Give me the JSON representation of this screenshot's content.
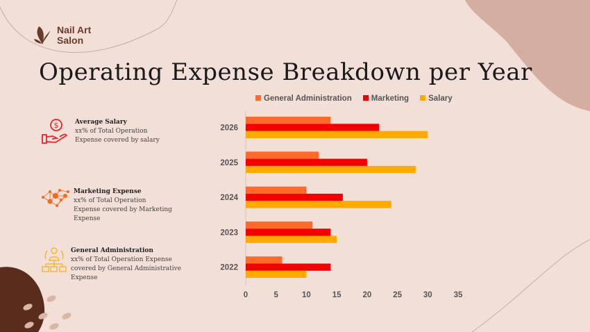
{
  "brand": {
    "name_line1": "Nail Art",
    "name_line2": "Salon",
    "icon": "butterfly-icon"
  },
  "title": "Operating Expense Breakdown per Year",
  "info": [
    {
      "icon": "hand-dollar-icon",
      "heading": "Average Salary",
      "lines": [
        "xx% of Total Operation",
        "Expense covered by salary"
      ],
      "color": "#e8262a"
    },
    {
      "icon": "network-people-icon",
      "heading": "Marketing Expense",
      "lines": [
        "xx% of Total Operation",
        "Expense covered by Marketing",
        "Expense"
      ],
      "color": "#f26a21"
    },
    {
      "icon": "org-chart-icon",
      "heading": "General Administration",
      "lines": [
        "xx% of Total Operation Expense",
        "covered by General Administrative",
        "Expense"
      ],
      "color": "#f7b731"
    }
  ],
  "chart_data": {
    "type": "bar",
    "orientation": "horizontal",
    "categories": [
      "2026",
      "2025",
      "2024",
      "2023",
      "2022"
    ],
    "series": [
      {
        "name": "General Administration",
        "color": "#ff6a2b",
        "values": [
          14,
          12,
          10,
          11,
          6
        ]
      },
      {
        "name": "Marketing",
        "color": "#f50000",
        "values": [
          22,
          20,
          16,
          14,
          14
        ]
      },
      {
        "name": "Salary",
        "color": "#ffaa00",
        "values": [
          30,
          28,
          24,
          15,
          10
        ]
      }
    ],
    "xlim": [
      0,
      35
    ],
    "xticks": [
      0,
      5,
      10,
      15,
      20,
      25,
      30,
      35
    ],
    "legend": "top",
    "grid": false
  }
}
